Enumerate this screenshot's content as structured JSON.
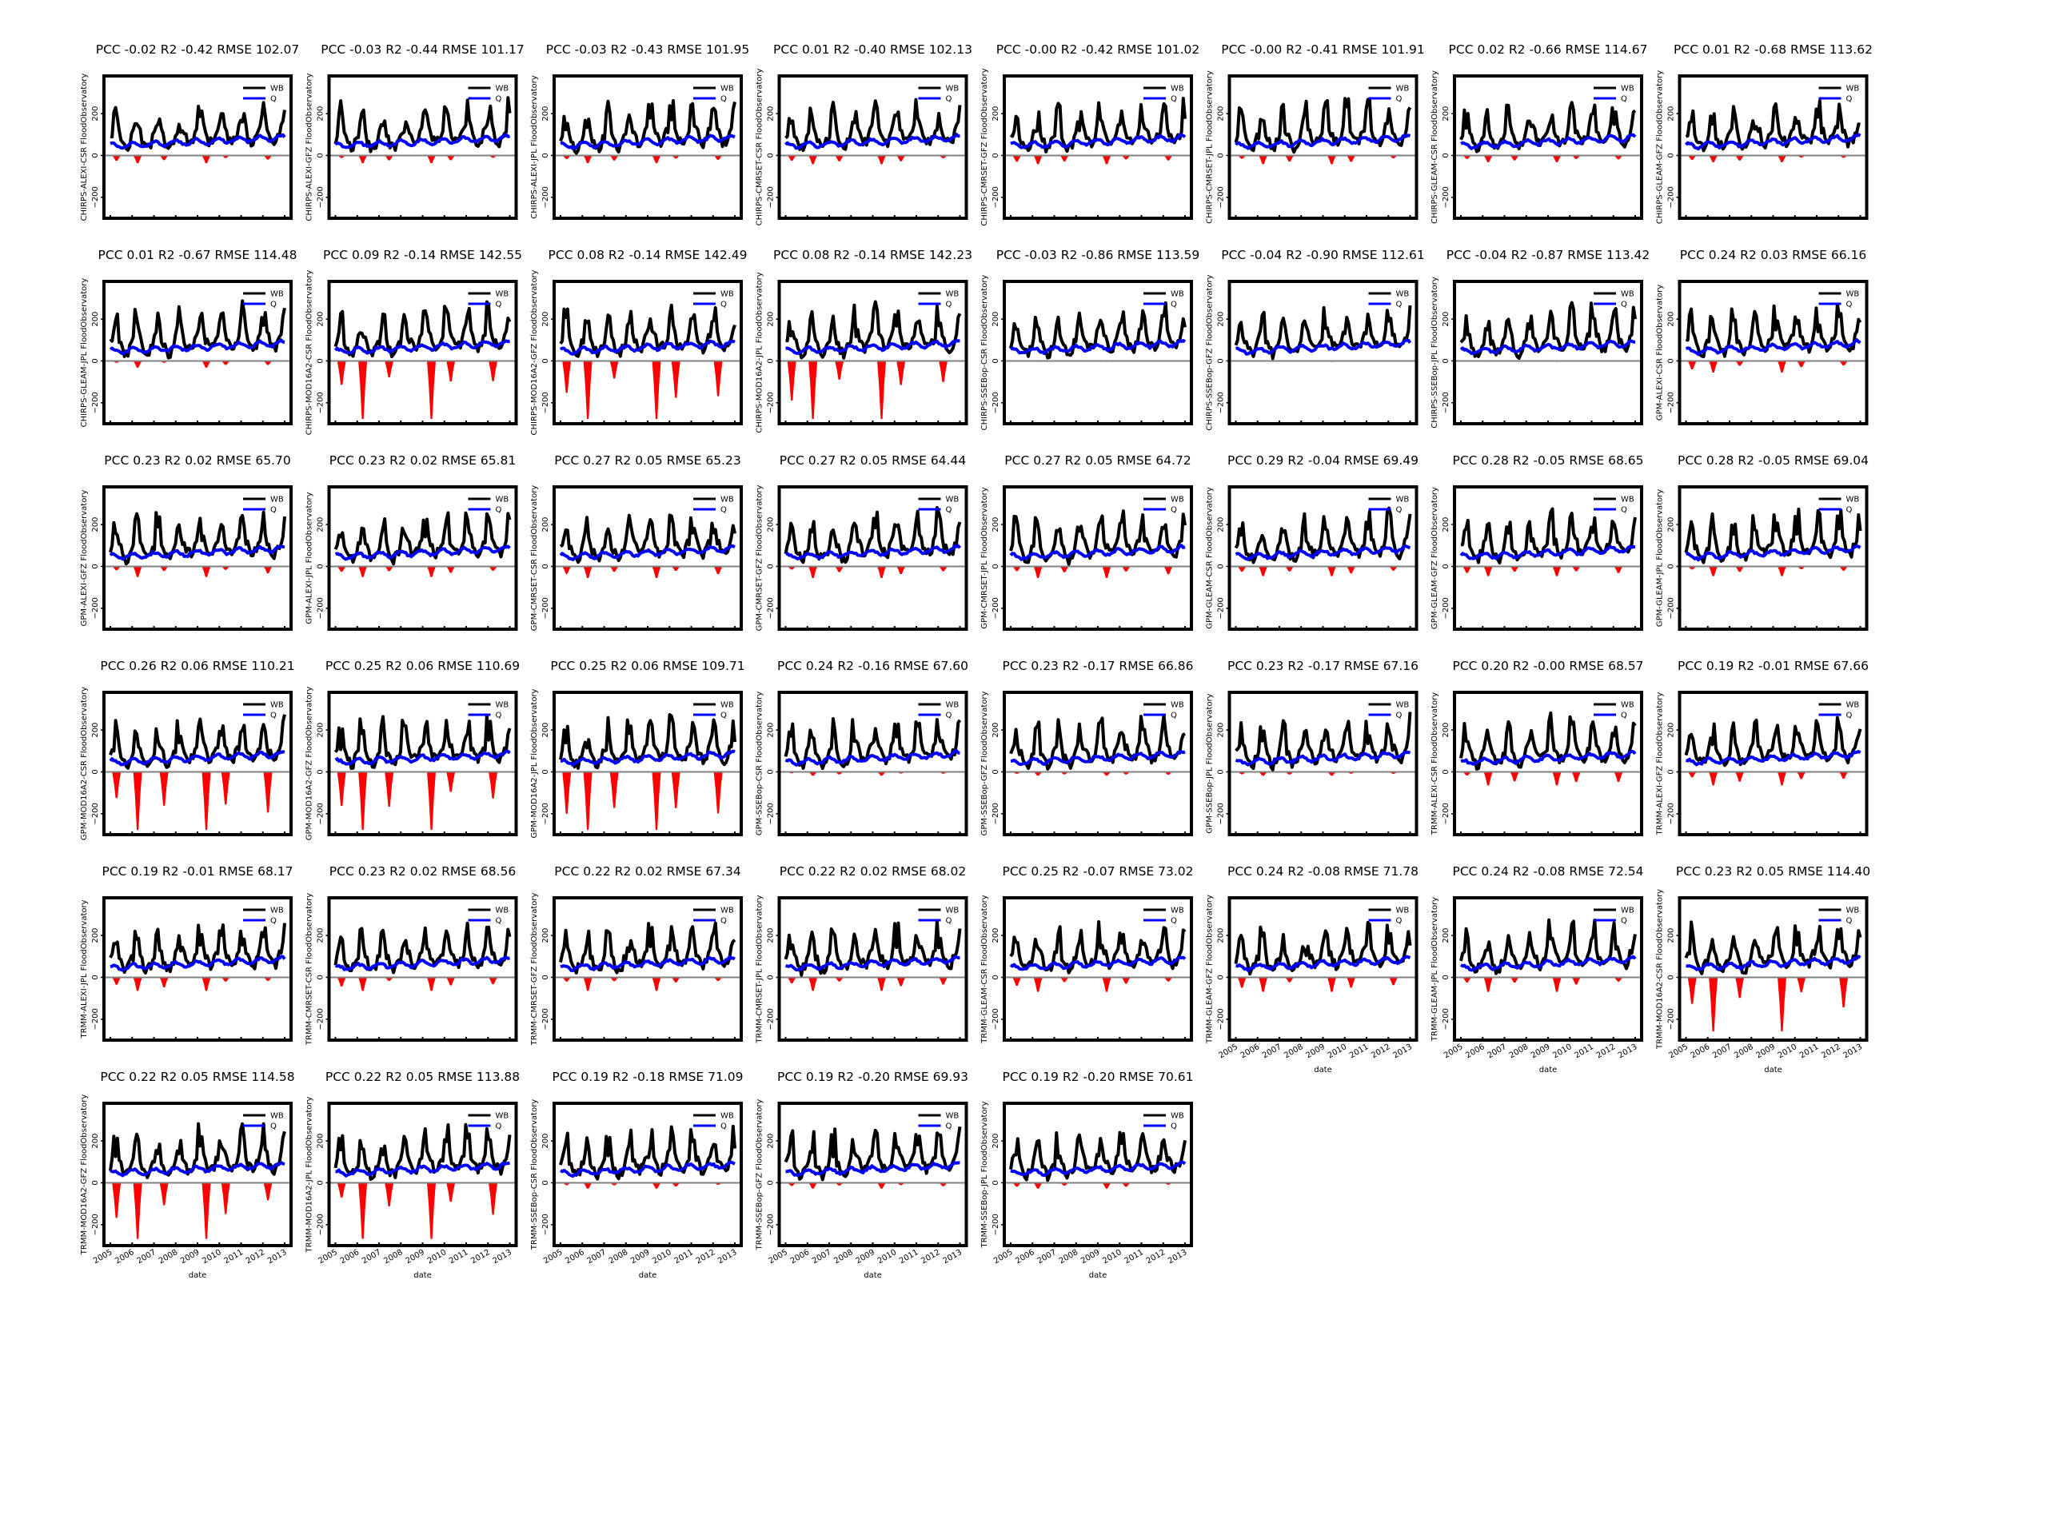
{
  "chart_data": {
    "type": "line",
    "layout": "small-multiples grid, 8 columns x 6 rows, 45 panels",
    "x": [
      "2005",
      "2006",
      "2007",
      "2008",
      "2009",
      "2010",
      "2011",
      "2012",
      "2013"
    ],
    "xlabel": "date",
    "ylim": [
      -300,
      380
    ],
    "yticks": [
      -200,
      0,
      200
    ],
    "legend": {
      "placement": "top-right",
      "entries": [
        "WB",
        "Q"
      ]
    },
    "series_colors": {
      "WB": "#000000",
      "Q": "#0000ff",
      "negative_fill": "#ff0000"
    },
    "panels": [
      {
        "title": "PCC -0.02 R2 -0.42 RMSE 102.07",
        "ylabel": "CHIRPS-ALEXI-CSR FloodObservatory",
        "neg_peak": -40
      },
      {
        "title": "PCC -0.03 R2 -0.44 RMSE 101.17",
        "ylabel": "CHIRPS-ALEXI-GFZ FloodObservatory",
        "neg_peak": -40
      },
      {
        "title": "PCC -0.03 R2 -0.43 RMSE 101.95",
        "ylabel": "CHIRPS-ALEXI-JPL FloodObservatory",
        "neg_peak": -40
      },
      {
        "title": "PCC 0.01 R2 -0.40 RMSE 102.13",
        "ylabel": "CHIRPS-CMRSET-CSR FloodObservatory",
        "neg_peak": -45
      },
      {
        "title": "PCC -0.00 R2 -0.42 RMSE 101.02",
        "ylabel": "CHIRPS-CMRSET-GFZ FloodObservatory",
        "neg_peak": -45
      },
      {
        "title": "PCC -0.00 R2 -0.41 RMSE 101.91",
        "ylabel": "CHIRPS-CMRSET-JPL FloodObservatory",
        "neg_peak": -45
      },
      {
        "title": "PCC 0.02 R2 -0.66 RMSE 114.67",
        "ylabel": "CHIRPS-GLEAM-CSR FloodObservatory",
        "neg_peak": -35
      },
      {
        "title": "PCC 0.01 R2 -0.68 RMSE 113.62",
        "ylabel": "CHIRPS-GLEAM-GFZ FloodObservatory",
        "neg_peak": -35
      },
      {
        "title": "PCC 0.01 R2 -0.67 RMSE 114.48",
        "ylabel": "CHIRPS-GLEAM-JPL FloodObservatory",
        "neg_peak": -35
      },
      {
        "title": "PCC 0.09 R2 -0.14 RMSE 142.55",
        "ylabel": "CHIRPS-MOD16A2-CSR FloodObservatory",
        "neg_peak": -300
      },
      {
        "title": "PCC 0.08 R2 -0.14 RMSE 142.49",
        "ylabel": "CHIRPS-MOD16A2-GFZ FloodObservatory",
        "neg_peak": -300
      },
      {
        "title": "PCC 0.08 R2 -0.14 RMSE 142.23",
        "ylabel": "CHIRPS-MOD16A2-JPL FloodObservatory",
        "neg_peak": -300
      },
      {
        "title": "PCC -0.03 R2 -0.86 RMSE 113.59",
        "ylabel": "CHIRPS-SSEBop-CSR FloodObservatory",
        "neg_peak": -5
      },
      {
        "title": "PCC -0.04 R2 -0.90 RMSE 112.61",
        "ylabel": "CHIRPS-SSEBop-GFZ FloodObservatory",
        "neg_peak": -5
      },
      {
        "title": "PCC -0.04 R2 -0.87 RMSE 113.42",
        "ylabel": "CHIRPS-SSEBop-JPL FloodObservatory",
        "neg_peak": -5
      },
      {
        "title": "PCC 0.24 R2 0.03 RMSE 66.16",
        "ylabel": "GPM-ALEXI-CSR FloodObservatory",
        "neg_peak": -60
      },
      {
        "title": "PCC 0.23 R2 0.02 RMSE 65.70",
        "ylabel": "GPM-ALEXI-GFZ FloodObservatory",
        "neg_peak": -55
      },
      {
        "title": "PCC 0.23 R2 0.02 RMSE 65.81",
        "ylabel": "GPM-ALEXI-JPL FloodObservatory",
        "neg_peak": -55
      },
      {
        "title": "PCC 0.27 R2 0.05 RMSE 65.23",
        "ylabel": "GPM-CMRSET-CSR FloodObservatory",
        "neg_peak": -60
      },
      {
        "title": "PCC 0.27 R2 0.05 RMSE 64.44",
        "ylabel": "GPM-CMRSET-GFZ FloodObservatory",
        "neg_peak": -60
      },
      {
        "title": "PCC 0.27 R2 0.05 RMSE 64.72",
        "ylabel": "GPM-CMRSET-JPL FloodObservatory",
        "neg_peak": -60
      },
      {
        "title": "PCC 0.29 R2 -0.04 RMSE 69.49",
        "ylabel": "GPM-GLEAM-CSR FloodObservatory",
        "neg_peak": -50
      },
      {
        "title": "PCC 0.28 R2 -0.05 RMSE 68.65",
        "ylabel": "GPM-GLEAM-GFZ FloodObservatory",
        "neg_peak": -50
      },
      {
        "title": "PCC 0.28 R2 -0.05 RMSE 69.04",
        "ylabel": "GPM-GLEAM-JPL FloodObservatory",
        "neg_peak": -50
      },
      {
        "title": "PCC 0.26 R2 0.06 RMSE 110.21",
        "ylabel": "GPM-MOD16A2-CSR FloodObservatory",
        "neg_peak": -300
      },
      {
        "title": "PCC 0.25 R2 0.06 RMSE 110.69",
        "ylabel": "GPM-MOD16A2-GFZ FloodObservatory",
        "neg_peak": -300
      },
      {
        "title": "PCC 0.25 R2 0.06 RMSE 109.71",
        "ylabel": "GPM-MOD16A2-JPL FloodObservatory",
        "neg_peak": -300
      },
      {
        "title": "PCC 0.24 R2 -0.16 RMSE 67.60",
        "ylabel": "GPM-SSEBop-CSR FloodObservatory",
        "neg_peak": -20
      },
      {
        "title": "PCC 0.23 R2 -0.17 RMSE 66.86",
        "ylabel": "GPM-SSEBop-GFZ FloodObservatory",
        "neg_peak": -20
      },
      {
        "title": "PCC 0.23 R2 -0.17 RMSE 67.16",
        "ylabel": "GPM-SSEBop-JPL FloodObservatory",
        "neg_peak": -20
      },
      {
        "title": "PCC 0.20 R2 -0.00 RMSE 68.57",
        "ylabel": "TRMM-ALEXI-CSR FloodObservatory",
        "neg_peak": -70
      },
      {
        "title": "PCC 0.19 R2 -0.01 RMSE 67.66",
        "ylabel": "TRMM-ALEXI-GFZ FloodObservatory",
        "neg_peak": -70
      },
      {
        "title": "PCC 0.19 R2 -0.01 RMSE 68.17",
        "ylabel": "TRMM-ALEXI-JPL FloodObservatory",
        "neg_peak": -70
      },
      {
        "title": "PCC 0.23 R2 0.02 RMSE 68.56",
        "ylabel": "TRMM-CMRSET-CSR FloodObservatory",
        "neg_peak": -70
      },
      {
        "title": "PCC 0.22 R2 0.02 RMSE 67.34",
        "ylabel": "TRMM-CMRSET-GFZ FloodObservatory",
        "neg_peak": -70
      },
      {
        "title": "PCC 0.22 R2 0.02 RMSE 68.02",
        "ylabel": "TRMM-CMRSET-JPL FloodObservatory",
        "neg_peak": -70
      },
      {
        "title": "PCC 0.25 R2 -0.07 RMSE 73.02",
        "ylabel": "TRMM-GLEAM-CSR FloodObservatory",
        "neg_peak": -75
      },
      {
        "title": "PCC 0.24 R2 -0.08 RMSE 71.78",
        "ylabel": "TRMM-GLEAM-GFZ FloodObservatory",
        "neg_peak": -75
      },
      {
        "title": "PCC 0.24 R2 -0.08 RMSE 72.54",
        "ylabel": "TRMM-GLEAM-JPL FloodObservatory",
        "neg_peak": -75
      },
      {
        "title": "PCC 0.23 R2 0.05 RMSE 114.40",
        "ylabel": "TRMM-MOD16A2-CSR FloodObservatory",
        "neg_peak": -280
      },
      {
        "title": "PCC 0.22 R2 0.05 RMSE 114.58",
        "ylabel": "TRMM-MOD16A2-GFZ FloodObservatory",
        "neg_peak": -290
      },
      {
        "title": "PCC 0.22 R2 0.05 RMSE 113.88",
        "ylabel": "TRMM-MOD16A2-JPL FloodObservatory",
        "neg_peak": -290
      },
      {
        "title": "PCC 0.19 R2 -0.18 RMSE 71.09",
        "ylabel": "TRMM-SSEBop-CSR FloodObservatory",
        "neg_peak": -30
      },
      {
        "title": "PCC 0.19 R2 -0.20 RMSE 69.93",
        "ylabel": "TRMM-SSEBop-GFZ FloodObservatory",
        "neg_peak": -30
      },
      {
        "title": "PCC 0.19 R2 -0.20 RMSE 70.61",
        "ylabel": "TRMM-SSEBop-JPL FloodObservatory",
        "neg_peak": -30
      }
    ]
  }
}
